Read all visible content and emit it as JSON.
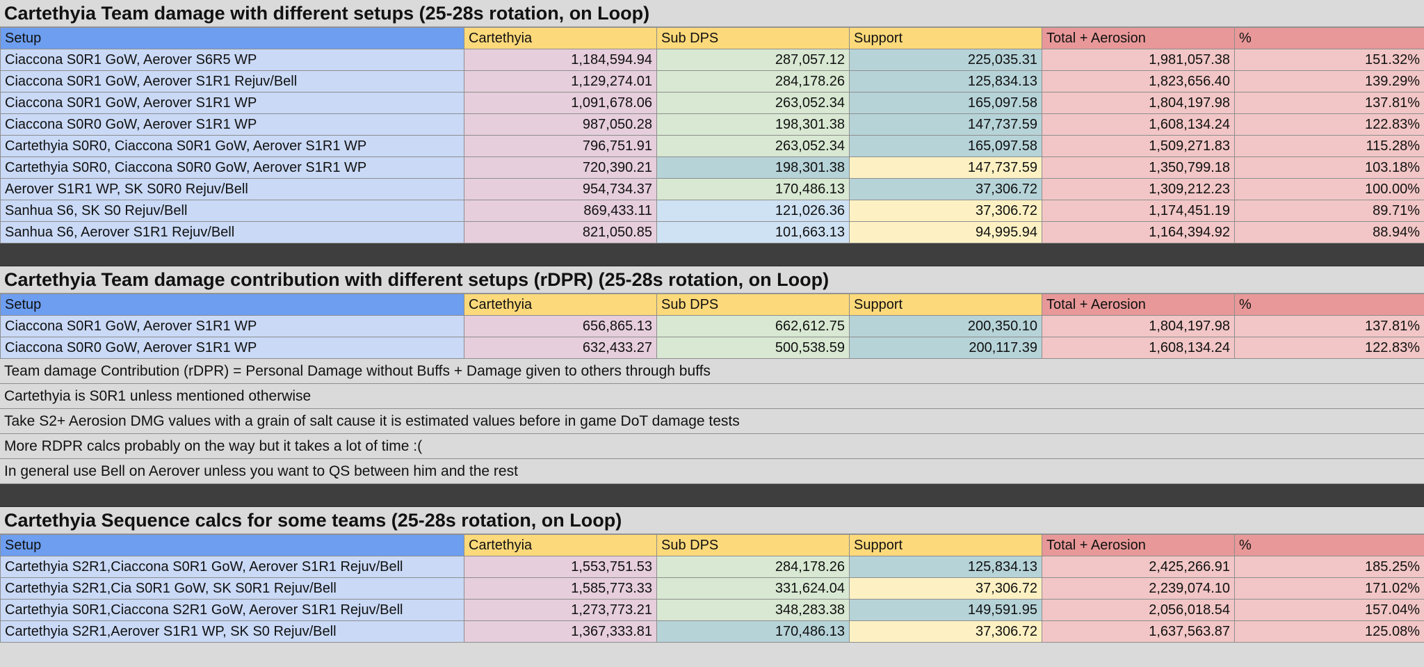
{
  "headers": {
    "setup": "Setup",
    "carte": "Cartethyia",
    "sub": "Sub DPS",
    "sup": "Support",
    "total": "Total + Aerosion",
    "pct": "%"
  },
  "section1": {
    "title": "Cartethyia Team damage with different setups (25-28s rotation, on Loop)",
    "rows": [
      {
        "setup": "Ciaccona S0R1 GoW, Aerover S6R5 WP",
        "carte": "1,184,594.94",
        "sub": "287,057.12",
        "sup": "225,035.31",
        "total": "1,981,057.38",
        "pct": "151.32%"
      },
      {
        "setup": "Ciaccona S0R1 GoW, Aerover S1R1 Rejuv/Bell",
        "carte": "1,129,274.01",
        "sub": "284,178.26",
        "sup": "125,834.13",
        "total": "1,823,656.40",
        "pct": "139.29%"
      },
      {
        "setup": "Ciaccona S0R1 GoW, Aerover S1R1 WP",
        "carte": "1,091,678.06",
        "sub": "263,052.34",
        "sup": "165,097.58",
        "total": "1,804,197.98",
        "pct": "137.81%"
      },
      {
        "setup": "Ciaccona S0R0 GoW, Aerover S1R1 WP",
        "carte": "987,050.28",
        "sub": "198,301.38",
        "sup": "147,737.59",
        "total": "1,608,134.24",
        "pct": "122.83%"
      },
      {
        "setup": "Cartethyia S0R0, Ciaccona S0R1 GoW, Aerover S1R1 WP",
        "carte": "796,751.91",
        "sub": "263,052.34",
        "sup": "165,097.58",
        "total": "1,509,271.83",
        "pct": "115.28%"
      },
      {
        "setup": "Cartethyia S0R0, Ciaccona S0R0 GoW, Aerover S1R1 WP",
        "carte": "720,390.21",
        "sub": "198,301.38",
        "sup": "147,737.59",
        "total": "1,350,799.18",
        "pct": "103.18%"
      },
      {
        "setup": "Aerover S1R1 WP, SK S0R0 Rejuv/Bell",
        "carte": "954,734.37",
        "sub": "170,486.13",
        "sup": "37,306.72",
        "total": "1,309,212.23",
        "pct": "100.00%"
      },
      {
        "setup": "Sanhua S6, SK S0 Rejuv/Bell",
        "carte": "869,433.11",
        "sub": "121,026.36",
        "sup": "37,306.72",
        "total": "1,174,451.19",
        "pct": "89.71%"
      },
      {
        "setup": "Sanhua S6, Aerover S1R1 Rejuv/Bell",
        "carte": "821,050.85",
        "sub": "101,663.13",
        "sup": "94,995.94",
        "total": "1,164,394.92",
        "pct": "88.94%"
      }
    ]
  },
  "section2": {
    "title": "Cartethyia Team damage contribution with different setups (rDPR) (25-28s rotation, on Loop)",
    "rows": [
      {
        "setup": "Ciaccona S0R1 GoW, Aerover S1R1 WP",
        "carte": "656,865.13",
        "sub": "662,612.75",
        "sup": "200,350.10",
        "total": "1,804,197.98",
        "pct": "137.81%"
      },
      {
        "setup": "Ciaccona S0R0 GoW, Aerover S1R1 WP",
        "carte": "632,433.27",
        "sub": "500,538.59",
        "sup": "200,117.39",
        "total": "1,608,134.24",
        "pct": "122.83%"
      }
    ]
  },
  "notes": [
    "Team damage Contribution (rDPR) = Personal Damage without Buffs + Damage given to others through buffs",
    "Cartethyia is S0R1 unless mentioned otherwise",
    "Take S2+ Aerosion DMG values with a grain of salt cause it is estimated values before in game DoT damage tests",
    "More RDPR calcs probably on the way but it takes a lot of time :(",
    "In general use Bell on Aerover unless you want to QS between him and the rest"
  ],
  "section3": {
    "title": "Cartethyia Sequence calcs for some teams (25-28s rotation, on Loop)",
    "rows": [
      {
        "setup": "Cartethyia S2R1,Ciaccona S0R1 GoW, Aerover S1R1 Rejuv/Bell",
        "carte": "1,553,751.53",
        "sub": "284,178.26",
        "sup": "125,834.13",
        "total": "2,425,266.91",
        "pct": "185.25%"
      },
      {
        "setup": "Cartethyia S2R1,Cia S0R1 GoW, SK S0R1 Rejuv/Bell",
        "carte": "1,585,773.33",
        "sub": "331,624.04",
        "sup": "37,306.72",
        "total": "2,239,074.10",
        "pct": "171.02%"
      },
      {
        "setup": "Cartethyia S0R1,Ciaccona S2R1 GoW, Aerover S1R1 Rejuv/Bell",
        "carte": "1,273,773.21",
        "sub": "348,283.38",
        "sup": "149,591.95",
        "total": "2,056,018.54",
        "pct": "157.04%"
      },
      {
        "setup": "Cartethyia S2R1,Aerover S1R1 WP, SK S0 Rejuv/Bell",
        "carte": "1,367,333.81",
        "sub": "170,486.13",
        "sup": "37,306.72",
        "total": "1,637,563.87",
        "pct": "125.08%"
      }
    ]
  }
}
